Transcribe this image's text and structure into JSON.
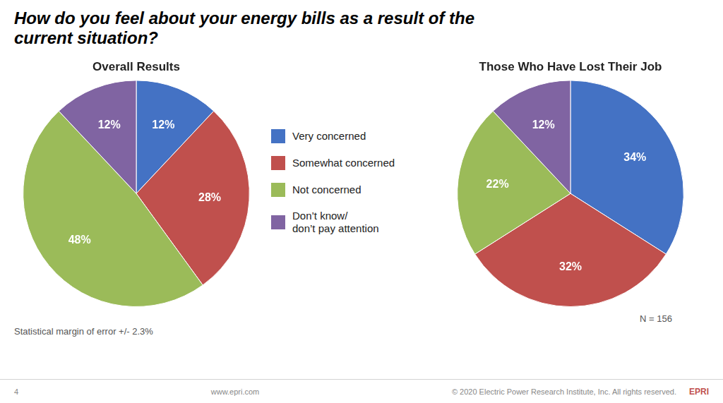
{
  "title": "How do you feel about your energy bills as a result of the\ncurrent situation?",
  "annotations": [
    "Statistical margin of error +/- 2.3%",
    "4",
    "www.epri.com",
    "© 2020 Electric Power Research Institute, Inc. All rights reserved.",
    "EPRI"
  ],
  "chart_data": [
    {
      "type": "pie",
      "title": "Overall Results",
      "categories": [
        "Very concerned",
        "Somewhat concerned",
        "Not concerned",
        "Don’t know/\ndon’t pay attention"
      ],
      "values": [
        12,
        28,
        48,
        12
      ],
      "value_labels": [
        "12%",
        "28%",
        "48%",
        "12%"
      ],
      "data_labels": true,
      "colors": [
        "#4472C4",
        "#C0504D",
        "#9BBB59",
        "#8064A2"
      ],
      "legend": "right"
    },
    {
      "type": "pie",
      "title": "Those Who Have Lost Their Job",
      "categories": [
        "Very concerned",
        "Somewhat concerned",
        "Not concerned",
        "Don’t know/\ndon’t pay attention"
      ],
      "values": [
        34,
        32,
        22,
        12
      ],
      "value_labels": [
        "34%",
        "32%",
        "22%",
        "12%"
      ],
      "data_labels": true,
      "colors": [
        "#4472C4",
        "#C0504D",
        "#9BBB59",
        "#8064A2"
      ],
      "annotations": [
        "N = 156"
      ]
    }
  ]
}
